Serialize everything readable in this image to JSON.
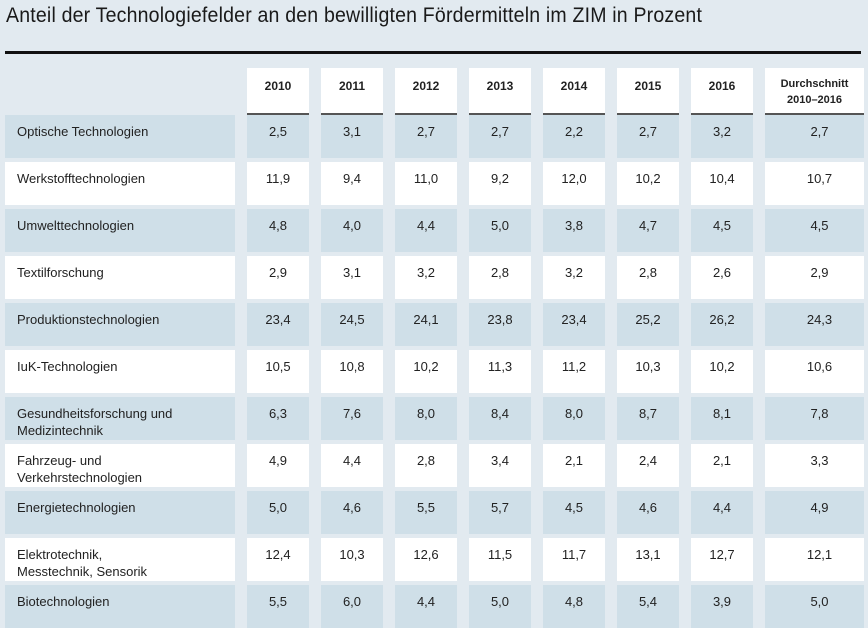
{
  "title": "Anteil der Technologiefelder an den bewilligten Fördermitteln im ZIM in Prozent",
  "columns": [
    "2010",
    "2011",
    "2012",
    "2013",
    "2014",
    "2015",
    "2016",
    "Durchschnitt\n2010–2016"
  ],
  "rows": [
    {
      "label": "Optische Technologien",
      "values": [
        "2,5",
        "3,1",
        "2,7",
        "2,7",
        "2,2",
        "2,7",
        "3,2",
        "2,7"
      ]
    },
    {
      "label": "Werkstofftechnologien",
      "values": [
        "11,9",
        "9,4",
        "11,0",
        "9,2",
        "12,0",
        "10,2",
        "10,4",
        "10,7"
      ]
    },
    {
      "label": "Umwelttechnologien",
      "values": [
        "4,8",
        "4,0",
        "4,4",
        "5,0",
        "3,8",
        "4,7",
        "4,5",
        "4,5"
      ]
    },
    {
      "label": "Textilforschung",
      "values": [
        "2,9",
        "3,1",
        "3,2",
        "2,8",
        "3,2",
        "2,8",
        "2,6",
        "2,9"
      ]
    },
    {
      "label": "Produktionstechnologien",
      "values": [
        "23,4",
        "24,5",
        "24,1",
        "23,8",
        "23,4",
        "25,2",
        "26,2",
        "24,3"
      ]
    },
    {
      "label": "IuK-Technologien",
      "values": [
        "10,5",
        "10,8",
        "10,2",
        "11,3",
        "11,2",
        "10,3",
        "10,2",
        "10,6"
      ]
    },
    {
      "label": "Gesundheitsforschung und\nMedizintechnik",
      "values": [
        "6,3",
        "7,6",
        "8,0",
        "8,4",
        "8,0",
        "8,7",
        "8,1",
        "7,8"
      ]
    },
    {
      "label": "Fahrzeug- und\nVerkehrstechnologien",
      "values": [
        "4,9",
        "4,4",
        "2,8",
        "3,4",
        "2,1",
        "2,4",
        "2,1",
        "3,3"
      ]
    },
    {
      "label": "Energietechnologien",
      "values": [
        "5,0",
        "4,6",
        "5,5",
        "5,7",
        "4,5",
        "4,6",
        "4,4",
        "4,9"
      ]
    },
    {
      "label": "Elektrotechnik,\nMesstechnik, Sensorik",
      "values": [
        "12,4",
        "10,3",
        "12,6",
        "11,5",
        "11,7",
        "13,1",
        "12,7",
        "12,1"
      ]
    },
    {
      "label": "Biotechnologien",
      "values": [
        "5,5",
        "6,0",
        "4,4",
        "5,0",
        "4,8",
        "5,4",
        "3,9",
        "5,0"
      ]
    }
  ],
  "colors": {
    "background": "#e2eaf0",
    "shade": "#cfdfe8",
    "white": "#ffffff"
  }
}
